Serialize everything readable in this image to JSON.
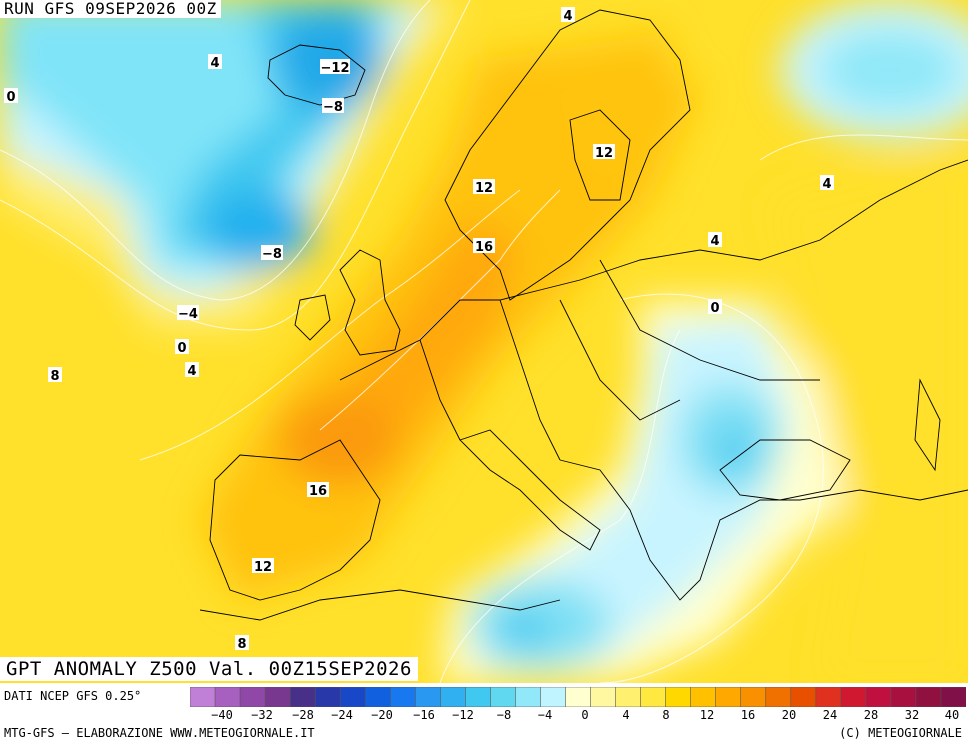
{
  "header": {
    "run_label": "RUN GFS 09SEP2026 00Z"
  },
  "title": {
    "text": "GPT ANOMALY Z500 Val. 00Z15SEP2026"
  },
  "footer": {
    "data_source": "DATI NCEP GFS 0.25°",
    "credit_left": "MTG-GFS — ELABORAZIONE WWW.METEOGIORNALE.IT",
    "credit_right": "(C) METEOGIORNALE"
  },
  "colorbar": {
    "colors": [
      "#c080d8",
      "#a860c0",
      "#9048a8",
      "#783890",
      "#483088",
      "#2838a8",
      "#1848c8",
      "#1060e0",
      "#1878f0",
      "#2898f0",
      "#30b0f0",
      "#40c8f0",
      "#60d8f0",
      "#90e8f8",
      "#c0f4ff",
      "#ffffd0",
      "#fff8a0",
      "#fff070",
      "#ffe840",
      "#ffd800",
      "#ffc000",
      "#ffa800",
      "#f89000",
      "#f07000",
      "#e85000",
      "#e03020",
      "#d01830",
      "#c01040",
      "#a81040",
      "#901040",
      "#801048"
    ],
    "tick_labels": [
      "-40",
      "-32",
      "-28",
      "-24",
      "-20",
      "-16",
      "-12",
      "-8",
      "-4",
      "0",
      "4",
      "8",
      "12",
      "16",
      "20",
      "24",
      "28",
      "32",
      "40"
    ]
  },
  "map": {
    "contour_labels": [
      "4",
      "0",
      "-12",
      "-8",
      "-8",
      "-4",
      "0",
      "4",
      "8",
      "12",
      "12",
      "16",
      "16",
      "12",
      "8",
      "4",
      "4",
      "0",
      "4"
    ]
  }
}
